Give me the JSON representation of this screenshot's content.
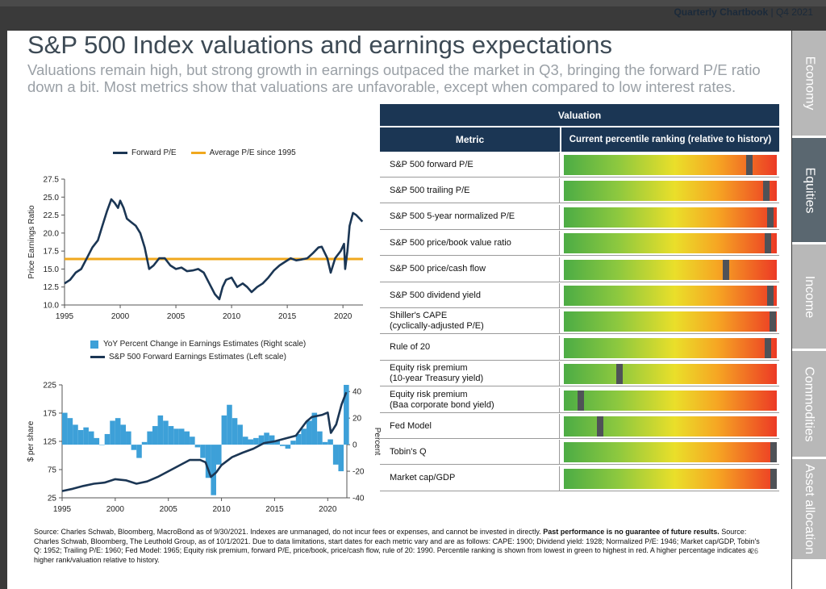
{
  "header": {
    "brand": "Quarterly Chartbook",
    "period": "Q4 2021"
  },
  "title": "S&P 500 Index valuations and earnings expectations",
  "subtitle": "Valuations remain high, but strong growth in earnings outpaced the market in Q3, bringing the forward P/E ratio down a bit. Most metrics show that valuations are unfavorable, except when compared to low interest rates.",
  "tabs": [
    {
      "label": "Economy",
      "active": false
    },
    {
      "label": "Equities",
      "active": true
    },
    {
      "label": "Income",
      "active": false
    },
    {
      "label": "Commodities",
      "active": false
    },
    {
      "label": "Asset allocation",
      "active": false
    }
  ],
  "colors": {
    "navy": "#1b3654",
    "orange": "#f0a81e",
    "blue_bar": "#3da0d8"
  },
  "chart_data": [
    {
      "type": "line",
      "ylabel": "Price Earnings Ratio",
      "ylim": [
        10,
        27.5
      ],
      "yticks": [
        "27.5",
        "25.0",
        "22.5",
        "20.0",
        "17.5",
        "15.0",
        "12.5",
        "10.0"
      ],
      "xlim": [
        1995,
        2021.8
      ],
      "xticks": [
        "1995",
        "2000",
        "2005",
        "2010",
        "2015",
        "2020"
      ],
      "series": [
        {
          "name": "Forward P/E",
          "x": [
            1995,
            1995.5,
            1996,
            1996.5,
            1997,
            1997.5,
            1998,
            1998.4,
            1998.8,
            1999.2,
            1999.5,
            1999.8,
            2000,
            2000.3,
            2000.6,
            2001,
            2001.4,
            2001.8,
            2002.2,
            2002.6,
            2003,
            2003.5,
            2004,
            2004.5,
            2005,
            2005.5,
            2006,
            2006.5,
            2007,
            2007.5,
            2008,
            2008.5,
            2008.9,
            2009.2,
            2009.5,
            2010,
            2010.5,
            2011,
            2011.4,
            2011.8,
            2012.3,
            2012.8,
            2013.3,
            2013.8,
            2014.3,
            2014.8,
            2015.3,
            2015.8,
            2016.2,
            2016.8,
            2017.3,
            2017.8,
            2018.1,
            2018.6,
            2018.9,
            2019.3,
            2019.8,
            2020.1,
            2020.2,
            2020.4,
            2020.6,
            2020.9,
            2021.2,
            2021.5,
            2021.75
          ],
          "y": [
            13,
            13.5,
            14.5,
            15,
            16.5,
            18,
            19,
            21,
            23,
            24.7,
            24.2,
            23.5,
            24.5,
            23.5,
            22,
            21.5,
            21,
            20,
            18,
            15,
            15.5,
            16.5,
            16.5,
            15.5,
            15,
            15.2,
            14.7,
            14.8,
            15,
            14.5,
            13,
            11.5,
            10.8,
            12.5,
            13.5,
            13.8,
            12.5,
            13,
            12.5,
            11.8,
            12.5,
            13,
            13.8,
            14.8,
            15.5,
            16,
            16.5,
            16.2,
            16.3,
            16.5,
            17.2,
            18,
            18.1,
            16.5,
            14.5,
            16.5,
            17.5,
            18.5,
            15,
            17.5,
            21,
            22.8,
            22.5,
            22,
            21.6
          ]
        },
        {
          "name": "Average P/E since 1995",
          "x": [
            1995,
            2021.8
          ],
          "y": [
            16.4,
            16.4
          ]
        }
      ]
    },
    {
      "type": "bar",
      "ylabel": "$ per share",
      "ylim": [
        25,
        225
      ],
      "yticks": [
        "225",
        "175",
        "125",
        "75",
        "25"
      ],
      "y2label": "Percent",
      "y2lim": [
        -40,
        45
      ],
      "y2ticks": [
        "40",
        "20",
        "0",
        "-20",
        "-40"
      ],
      "xlim": [
        1995,
        2021.8
      ],
      "xticks": [
        "1995",
        "2000",
        "2005",
        "2010",
        "2015",
        "2020"
      ],
      "series": [
        {
          "name": "YoY Percent Change in Earnings Estimates (Right scale)",
          "x": [
            1995,
            1995.5,
            1996,
            1996.5,
            1997,
            1997.5,
            1998,
            1998.5,
            1999,
            1999.5,
            2000,
            2000.5,
            2001,
            2001.5,
            2002,
            2002.5,
            2003,
            2003.5,
            2004,
            2004.5,
            2005,
            2005.5,
            2006,
            2006.5,
            2007,
            2007.5,
            2008,
            2008.5,
            2009,
            2009.5,
            2010,
            2010.5,
            2011,
            2011.5,
            2012,
            2012.5,
            2013,
            2013.5,
            2014,
            2014.5,
            2015,
            2015.5,
            2016,
            2016.5,
            2017,
            2017.5,
            2018,
            2018.5,
            2019,
            2019.5,
            2020,
            2020.5,
            2021,
            2021.5
          ],
          "y": [
            24,
            20,
            15,
            11,
            13,
            10,
            5,
            0,
            8,
            18,
            20,
            15,
            10,
            -4,
            -10,
            2,
            10,
            14,
            22,
            18,
            14,
            12,
            12,
            10,
            6,
            -2,
            -10,
            -25,
            -38,
            -15,
            22,
            30,
            20,
            15,
            6,
            4,
            5,
            7,
            9,
            7,
            3,
            -1,
            -3,
            3,
            8,
            12,
            18,
            24,
            10,
            2,
            4,
            -15,
            -20,
            45
          ]
        },
        {
          "name": "S&P 500 Forward Earnings Estimates (Left scale)",
          "x": [
            1995,
            1996,
            1997,
            1998,
            1999,
            2000,
            2001,
            2002,
            2003,
            2004,
            2005,
            2006,
            2007,
            2008,
            2008.5,
            2009,
            2009.5,
            2010,
            2011,
            2012,
            2013,
            2014,
            2015,
            2016,
            2017,
            2018,
            2018.5,
            2019,
            2019.5,
            2020,
            2020.3,
            2020.8,
            2021.3,
            2021.75
          ],
          "y": [
            37,
            41,
            46,
            50,
            52,
            58,
            56,
            50,
            54,
            62,
            72,
            82,
            92,
            92,
            88,
            62,
            70,
            83,
            97,
            105,
            112,
            122,
            125,
            130,
            135,
            160,
            168,
            170,
            172,
            176,
            140,
            155,
            190,
            212
          ]
        }
      ]
    }
  ],
  "table": {
    "header": "Valuation",
    "col_metric": "Metric",
    "col_rank": "Current percentile ranking (relative to history)",
    "rows": [
      {
        "metric": "S&P 500 forward P/E",
        "percentile": 0.87
      },
      {
        "metric": "S&P 500 trailing P/E",
        "percentile": 0.95
      },
      {
        "metric": "S&P 500 5-year normalized P/E",
        "percentile": 0.97
      },
      {
        "metric": "S&P 500 price/book value ratio",
        "percentile": 0.96
      },
      {
        "metric": "S&P 500 price/cash flow",
        "percentile": 0.76
      },
      {
        "metric": "S&P 500 dividend yield",
        "percentile": 0.97
      },
      {
        "metric": "Shiller's CAPE\n(cyclically-adjusted P/E)",
        "percentile": 0.98
      },
      {
        "metric": "Rule of 20",
        "percentile": 0.96
      },
      {
        "metric": "Equity risk premium\n(10-year Treasury yield)",
        "percentile": 0.26
      },
      {
        "metric": "Equity risk premium\n(Baa corporate bond yield)",
        "percentile": 0.08
      },
      {
        "metric": "Fed Model",
        "percentile": 0.17
      },
      {
        "metric": "Tobin's Q",
        "percentile": 0.99
      },
      {
        "metric": "Market cap/GDP",
        "percentile": 0.99
      }
    ]
  },
  "footer": {
    "part1": "Source: Charles Schwab, Bloomberg, MacroBond as of 9/30/2021. Indexes are unmanaged, do not incur fees or expenses, and cannot be invested in directly. ",
    "bold": "Past performance is no guarantee of future results.",
    "part2": " Source: Charles Schwab, Bloomberg, The Leuthold Group, as of 10/1/2021. Due to data limitations, start dates for each metric vary and are as follows: CAPE: 1900; Dividend yield: 1928; Normalized P/E: 1946; Market cap/GDP, Tobin's Q: 1952; Trailing P/E: 1960; Fed Model: 1965; Equity risk premium, forward P/E, price/book, price/cash flow, rule of 20: 1990. Percentile ranking is shown from lowest in green to highest in red. A higher percentage indicates a higher rank/valuation relative to history."
  },
  "page_number": "26"
}
